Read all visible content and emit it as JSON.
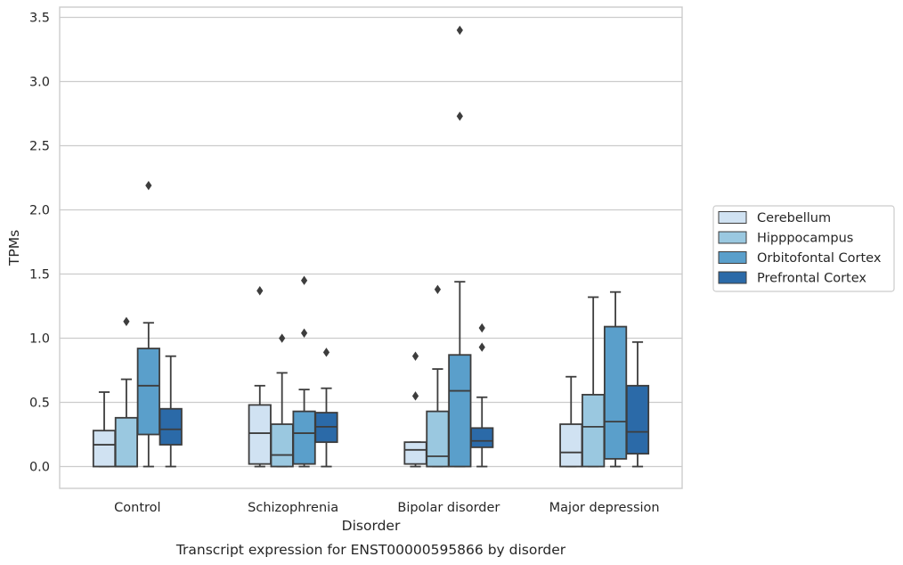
{
  "chart_data": {
    "type": "box",
    "xlabel": "Disorder",
    "ylabel": "TPMs",
    "caption": "Transcript expression for ENST00000595866 by disorder",
    "ylim": [
      -0.17,
      3.58
    ],
    "yticks": [
      0.0,
      0.5,
      1.0,
      1.5,
      2.0,
      2.5,
      3.0,
      3.5
    ],
    "ytick_labels": [
      "0.0",
      "0.5",
      "1.0",
      "1.5",
      "2.0",
      "2.5",
      "3.0",
      "3.5"
    ],
    "grid": "horizontal",
    "legend_position": "right",
    "categories": [
      "Control",
      "Schizophrenia",
      "Bipolar disorder",
      "Major depression"
    ],
    "series": [
      {
        "name": "Cerebellum",
        "color": "#d0e2f2",
        "boxes": [
          {
            "whisker_low": 0.0,
            "q1": 0.0,
            "median": 0.17,
            "q3": 0.28,
            "whisker_high": 0.58,
            "outliers": []
          },
          {
            "whisker_low": 0.0,
            "q1": 0.02,
            "median": 0.26,
            "q3": 0.48,
            "whisker_high": 0.63,
            "outliers": [
              1.37
            ]
          },
          {
            "whisker_low": 0.0,
            "q1": 0.02,
            "median": 0.13,
            "q3": 0.19,
            "whisker_high": 0.19,
            "outliers": [
              0.55,
              0.86
            ]
          },
          {
            "whisker_low": 0.0,
            "q1": 0.0,
            "median": 0.11,
            "q3": 0.33,
            "whisker_high": 0.7,
            "outliers": []
          }
        ]
      },
      {
        "name": "Hipppocampus",
        "color": "#9ac8e0",
        "boxes": [
          {
            "whisker_low": 0.0,
            "q1": 0.0,
            "median": 0.0,
            "q3": 0.38,
            "whisker_high": 0.68,
            "outliers": [
              1.13
            ]
          },
          {
            "whisker_low": 0.0,
            "q1": 0.0,
            "median": 0.09,
            "q3": 0.33,
            "whisker_high": 0.73,
            "outliers": [
              1.0
            ]
          },
          {
            "whisker_low": 0.0,
            "q1": 0.0,
            "median": 0.08,
            "q3": 0.43,
            "whisker_high": 0.76,
            "outliers": [
              1.38
            ]
          },
          {
            "whisker_low": 0.0,
            "q1": 0.0,
            "median": 0.31,
            "q3": 0.56,
            "whisker_high": 1.32,
            "outliers": []
          }
        ]
      },
      {
        "name": "Orbitofontal Cortex",
        "color": "#5a9fcb",
        "boxes": [
          {
            "whisker_low": 0.0,
            "q1": 0.25,
            "median": 0.63,
            "q3": 0.92,
            "whisker_high": 1.12,
            "outliers": [
              2.19
            ]
          },
          {
            "whisker_low": 0.0,
            "q1": 0.02,
            "median": 0.26,
            "q3": 0.43,
            "whisker_high": 0.6,
            "outliers": [
              1.04,
              1.45
            ]
          },
          {
            "whisker_low": 0.0,
            "q1": 0.0,
            "median": 0.59,
            "q3": 0.87,
            "whisker_high": 1.44,
            "outliers": [
              2.73,
              3.4
            ]
          },
          {
            "whisker_low": 0.0,
            "q1": 0.06,
            "median": 0.35,
            "q3": 1.09,
            "whisker_high": 1.36,
            "outliers": []
          }
        ]
      },
      {
        "name": "Prefrontal Cortex",
        "color": "#2b6aa8",
        "boxes": [
          {
            "whisker_low": 0.0,
            "q1": 0.17,
            "median": 0.29,
            "q3": 0.45,
            "whisker_high": 0.86,
            "outliers": []
          },
          {
            "whisker_low": 0.0,
            "q1": 0.19,
            "median": 0.31,
            "q3": 0.42,
            "whisker_high": 0.61,
            "outliers": [
              0.89
            ]
          },
          {
            "whisker_low": 0.0,
            "q1": 0.15,
            "median": 0.2,
            "q3": 0.3,
            "whisker_high": 0.54,
            "outliers": [
              0.93,
              1.08
            ]
          },
          {
            "whisker_low": 0.0,
            "q1": 0.1,
            "median": 0.27,
            "q3": 0.63,
            "whisker_high": 0.97,
            "outliers": []
          }
        ]
      }
    ]
  }
}
